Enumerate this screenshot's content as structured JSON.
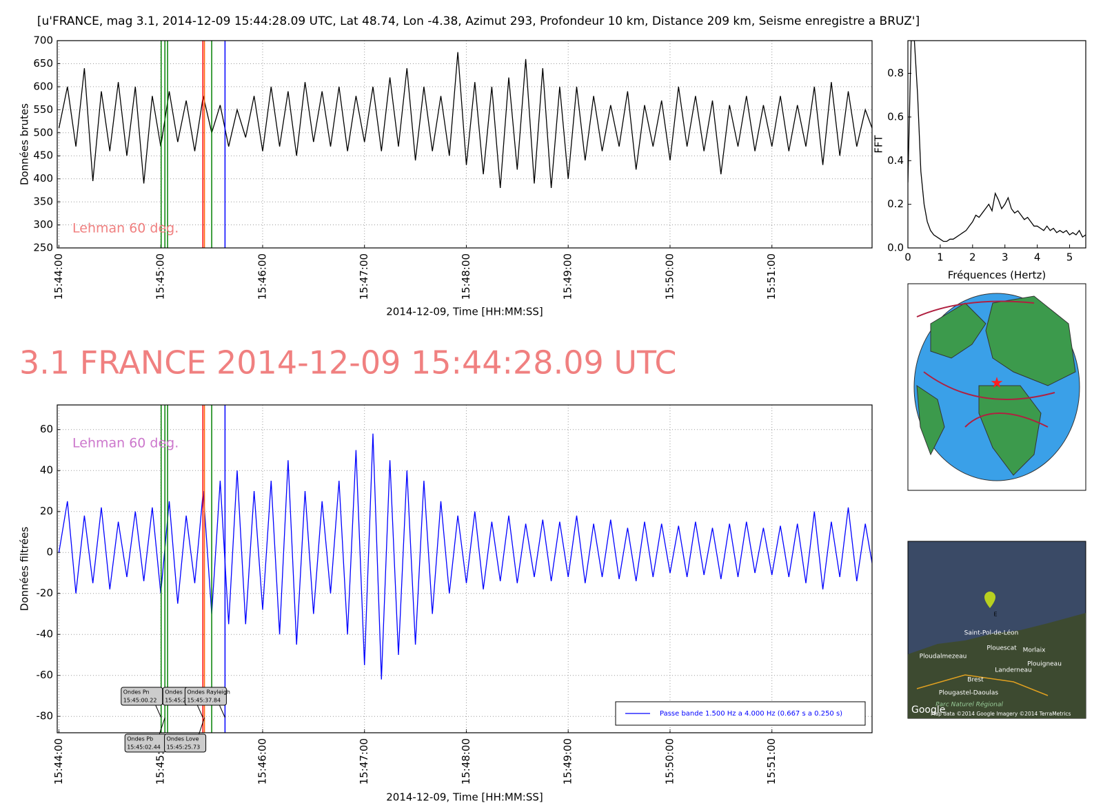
{
  "heading": "3.1 FRANCE 2014-12-09 15:44:28.09 UTC",
  "chart_data": [
    {
      "type": "line",
      "title": "[u'FRANCE, mag 3.1, 2014-12-09 15:44:28.09 UTC, Lat 48.74, Lon -4.38, Azimut 293, Profondeur 10 km, Distance   209 km, Seisme enregistre a BRUZ']",
      "ylabel": "Données brutes",
      "xlabel": "2014-12-09, Time [HH:MM:SS]",
      "x": [
        "15:44:00",
        "15:44:05",
        "15:44:10",
        "15:44:15",
        "15:44:20",
        "15:44:25",
        "15:44:30",
        "15:44:35",
        "15:44:40",
        "15:44:45",
        "15:44:50",
        "15:44:55",
        "15:45:00",
        "15:45:05",
        "15:45:10",
        "15:45:15",
        "15:45:20",
        "15:45:25",
        "15:45:30",
        "15:45:35",
        "15:45:40",
        "15:45:45",
        "15:45:50",
        "15:45:55",
        "15:46:00",
        "15:46:05",
        "15:46:10",
        "15:46:15",
        "15:46:20",
        "15:46:25",
        "15:46:30",
        "15:46:35",
        "15:46:40",
        "15:46:45",
        "15:46:50",
        "15:46:55",
        "15:47:00",
        "15:47:05",
        "15:47:10",
        "15:47:15",
        "15:47:20",
        "15:47:25",
        "15:47:30",
        "15:47:35",
        "15:47:40",
        "15:47:45",
        "15:47:50",
        "15:47:55",
        "15:48:00",
        "15:48:05",
        "15:48:10",
        "15:48:15",
        "15:48:20",
        "15:48:25",
        "15:48:30",
        "15:48:35",
        "15:48:40",
        "15:48:45",
        "15:48:50",
        "15:48:55",
        "15:49:00",
        "15:49:05",
        "15:49:10",
        "15:49:15",
        "15:49:20",
        "15:49:25",
        "15:49:30",
        "15:49:35",
        "15:49:40",
        "15:49:45",
        "15:49:50",
        "15:49:55",
        "15:50:00",
        "15:50:05",
        "15:50:10",
        "15:50:15",
        "15:50:20",
        "15:50:25",
        "15:50:30",
        "15:50:35",
        "15:50:40",
        "15:50:45",
        "15:50:50",
        "15:50:55",
        "15:51:00",
        "15:51:05",
        "15:51:10",
        "15:51:15",
        "15:51:20",
        "15:51:25",
        "15:51:30",
        "15:51:35",
        "15:51:40",
        "15:51:45",
        "15:51:50",
        "15:51:55",
        "15:52:00"
      ],
      "values": [
        510,
        600,
        470,
        640,
        395,
        590,
        460,
        610,
        450,
        600,
        390,
        580,
        470,
        590,
        480,
        570,
        460,
        580,
        500,
        560,
        470,
        550,
        490,
        580,
        460,
        600,
        470,
        590,
        450,
        610,
        480,
        590,
        470,
        600,
        460,
        580,
        480,
        600,
        460,
        620,
        470,
        640,
        440,
        600,
        460,
        580,
        450,
        675,
        430,
        610,
        410,
        600,
        380,
        620,
        420,
        660,
        390,
        640,
        380,
        600,
        400,
        600,
        440,
        580,
        460,
        560,
        470,
        590,
        420,
        560,
        470,
        570,
        440,
        600,
        470,
        580,
        460,
        570,
        410,
        560,
        470,
        580,
        460,
        560,
        470,
        580,
        460,
        560,
        470,
        600,
        430,
        610,
        450,
        590,
        470,
        550,
        500
      ],
      "color": "#000000",
      "xlim": [
        "15:43:59",
        "15:51:59"
      ],
      "xticks": [
        "15:44:00",
        "15:45:00",
        "15:46:00",
        "15:47:00",
        "15:48:00",
        "15:49:00",
        "15:50:00",
        "15:51:00"
      ],
      "ylim": [
        250,
        700
      ],
      "yticks": [
        250,
        300,
        350,
        400,
        450,
        500,
        550,
        600,
        650,
        700
      ],
      "grid": true,
      "markers": [
        {
          "x": "15:45:00.22",
          "color": "#008000"
        },
        {
          "x": "15:45:02.44",
          "color": "#008000"
        },
        {
          "x": "15:45:04",
          "color": "#008000"
        },
        {
          "x": "15:45:24.81",
          "color": "#ff0000"
        },
        {
          "x": "15:45:25.73",
          "color": "#ff6000"
        },
        {
          "x": "15:45:30",
          "color": "#008000"
        },
        {
          "x": "15:45:37.84",
          "color": "#0000ff"
        }
      ],
      "annotation": {
        "text": "Lehman 60 deg.",
        "color": "#f08080"
      }
    },
    {
      "type": "line",
      "ylabel": "FFT",
      "xlabel": "Fréquences (Hertz)",
      "x": [
        0,
        0.1,
        0.2,
        0.3,
        0.4,
        0.5,
        0.6,
        0.7,
        0.8,
        0.9,
        1,
        1.1,
        1.2,
        1.3,
        1.4,
        1.5,
        1.6,
        1.7,
        1.8,
        1.9,
        2,
        2.1,
        2.2,
        2.3,
        2.4,
        2.5,
        2.6,
        2.7,
        2.8,
        2.9,
        3,
        3.1,
        3.2,
        3.3,
        3.4,
        3.5,
        3.6,
        3.7,
        3.8,
        3.9,
        4,
        4.1,
        4.2,
        4.3,
        4.4,
        4.5,
        4.6,
        4.7,
        4.8,
        4.9,
        5,
        5.1,
        5.2,
        5.3,
        5.4,
        5.5
      ],
      "values": [
        0.3,
        0.95,
        0.95,
        0.7,
        0.35,
        0.2,
        0.12,
        0.08,
        0.06,
        0.05,
        0.04,
        0.03,
        0.03,
        0.04,
        0.04,
        0.05,
        0.06,
        0.07,
        0.08,
        0.1,
        0.12,
        0.15,
        0.14,
        0.16,
        0.18,
        0.2,
        0.17,
        0.25,
        0.22,
        0.18,
        0.2,
        0.23,
        0.18,
        0.16,
        0.17,
        0.15,
        0.13,
        0.14,
        0.12,
        0.1,
        0.1,
        0.09,
        0.08,
        0.1,
        0.08,
        0.09,
        0.07,
        0.08,
        0.07,
        0.08,
        0.06,
        0.07,
        0.06,
        0.08,
        0.05,
        0.06
      ],
      "color": "#000000",
      "xlim": [
        0,
        5.5
      ],
      "xticks": [
        0,
        1,
        2,
        3,
        4,
        5
      ],
      "ylim": [
        0,
        0.95
      ],
      "yticks": [
        {
          "value": 0,
          "label": "0.0"
        },
        0.2,
        0.4,
        0.6,
        0.8
      ],
      "grid": false
    },
    {
      "type": "line",
      "ylabel": "Données filtrées",
      "xlabel": "2014-12-09, Time [HH:MM:SS]",
      "x": [
        "15:44:00",
        "15:44:05",
        "15:44:10",
        "15:44:15",
        "15:44:20",
        "15:44:25",
        "15:44:30",
        "15:44:35",
        "15:44:40",
        "15:44:45",
        "15:44:50",
        "15:44:55",
        "15:45:00",
        "15:45:05",
        "15:45:10",
        "15:45:15",
        "15:45:20",
        "15:45:25",
        "15:45:30",
        "15:45:35",
        "15:45:40",
        "15:45:45",
        "15:45:50",
        "15:45:55",
        "15:46:00",
        "15:46:05",
        "15:46:10",
        "15:46:15",
        "15:46:20",
        "15:46:25",
        "15:46:30",
        "15:46:35",
        "15:46:40",
        "15:46:45",
        "15:46:50",
        "15:46:55",
        "15:47:00",
        "15:47:05",
        "15:47:10",
        "15:47:15",
        "15:47:20",
        "15:47:25",
        "15:47:30",
        "15:47:35",
        "15:47:40",
        "15:47:45",
        "15:47:50",
        "15:47:55",
        "15:48:00",
        "15:48:05",
        "15:48:10",
        "15:48:15",
        "15:48:20",
        "15:48:25",
        "15:48:30",
        "15:48:35",
        "15:48:40",
        "15:48:45",
        "15:48:50",
        "15:48:55",
        "15:49:00",
        "15:49:05",
        "15:49:10",
        "15:49:15",
        "15:49:20",
        "15:49:25",
        "15:49:30",
        "15:49:35",
        "15:49:40",
        "15:49:45",
        "15:49:50",
        "15:49:55",
        "15:50:00",
        "15:50:05",
        "15:50:10",
        "15:50:15",
        "15:50:20",
        "15:50:25",
        "15:50:30",
        "15:50:35",
        "15:50:40",
        "15:50:45",
        "15:50:50",
        "15:50:55",
        "15:51:00",
        "15:51:05",
        "15:51:10",
        "15:51:15",
        "15:51:20",
        "15:51:25",
        "15:51:30",
        "15:51:35",
        "15:51:40",
        "15:51:45",
        "15:51:50",
        "15:51:55",
        "15:52:00"
      ],
      "series": [
        {
          "name": "Passe bande 1.500 Hz a 4.000 Hz (0.667 s a 0.250 s)",
          "color": "#0000ff",
          "values": [
            0,
            25,
            -20,
            18,
            -15,
            22,
            -18,
            15,
            -12,
            20,
            -14,
            22,
            -20,
            25,
            -25,
            18,
            -15,
            30,
            -30,
            35,
            -35,
            40,
            -35,
            30,
            -28,
            35,
            -40,
            45,
            -45,
            30,
            -30,
            25,
            -20,
            35,
            -40,
            50,
            -55,
            58,
            -62,
            45,
            -50,
            40,
            -45,
            35,
            -30,
            25,
            -20,
            18,
            -15,
            20,
            -18,
            15,
            -14,
            18,
            -15,
            14,
            -12,
            16,
            -14,
            15,
            -12,
            18,
            -15,
            14,
            -12,
            16,
            -13,
            12,
            -14,
            15,
            -12,
            14,
            -10,
            13,
            -12,
            15,
            -11,
            12,
            -13,
            14,
            -12,
            15,
            -10,
            12,
            -11,
            13,
            -12,
            14,
            -15,
            20,
            -18,
            15,
            -12,
            22,
            -14,
            14,
            -10
          ]
        }
      ],
      "xlim": [
        "15:43:59",
        "15:51:59"
      ],
      "xticks": [
        "15:44:00",
        "15:45:00",
        "15:46:00",
        "15:47:00",
        "15:48:00",
        "15:49:00",
        "15:50:00",
        "15:51:00"
      ],
      "ylim": [
        -88,
        72
      ],
      "yticks": [
        -80,
        -60,
        -40,
        -20,
        0,
        20,
        40,
        60
      ],
      "grid": true,
      "legend": "lower right",
      "markers": [
        {
          "x": "15:45:00.22",
          "color": "#008000",
          "label": "Ondes Pn"
        },
        {
          "x": "15:45:02.44",
          "color": "#008000",
          "label": "Ondes Pb"
        },
        {
          "x": "15:45:04",
          "color": "#008000"
        },
        {
          "x": "15:45:24.81",
          "color": "#ff0000",
          "label": "Ondes Sn"
        },
        {
          "x": "15:45:25.73",
          "color": "#ff6000",
          "label": "Ondes Love"
        },
        {
          "x": "15:45:30",
          "color": "#008000"
        },
        {
          "x": "15:45:37.84",
          "color": "#0000ff",
          "label": "Ondes Rayleigh"
        }
      ],
      "annotation": {
        "text": "Lehman 60 deg.",
        "color": "#cc77cc"
      }
    }
  ],
  "map": {
    "labels": [
      "Saint-Pol-de-Léon",
      "Plouescat",
      "Morlaix",
      "Ploudalmezeau",
      "Plouigneau",
      "Landerneau",
      "Brest",
      "Plougastel-Daoulas",
      "Parc Naturel Régional"
    ],
    "logo": "Google",
    "attribution": "Map data ©2014 Google Imagery ©2014 TerraMetrics",
    "marker": "E"
  }
}
